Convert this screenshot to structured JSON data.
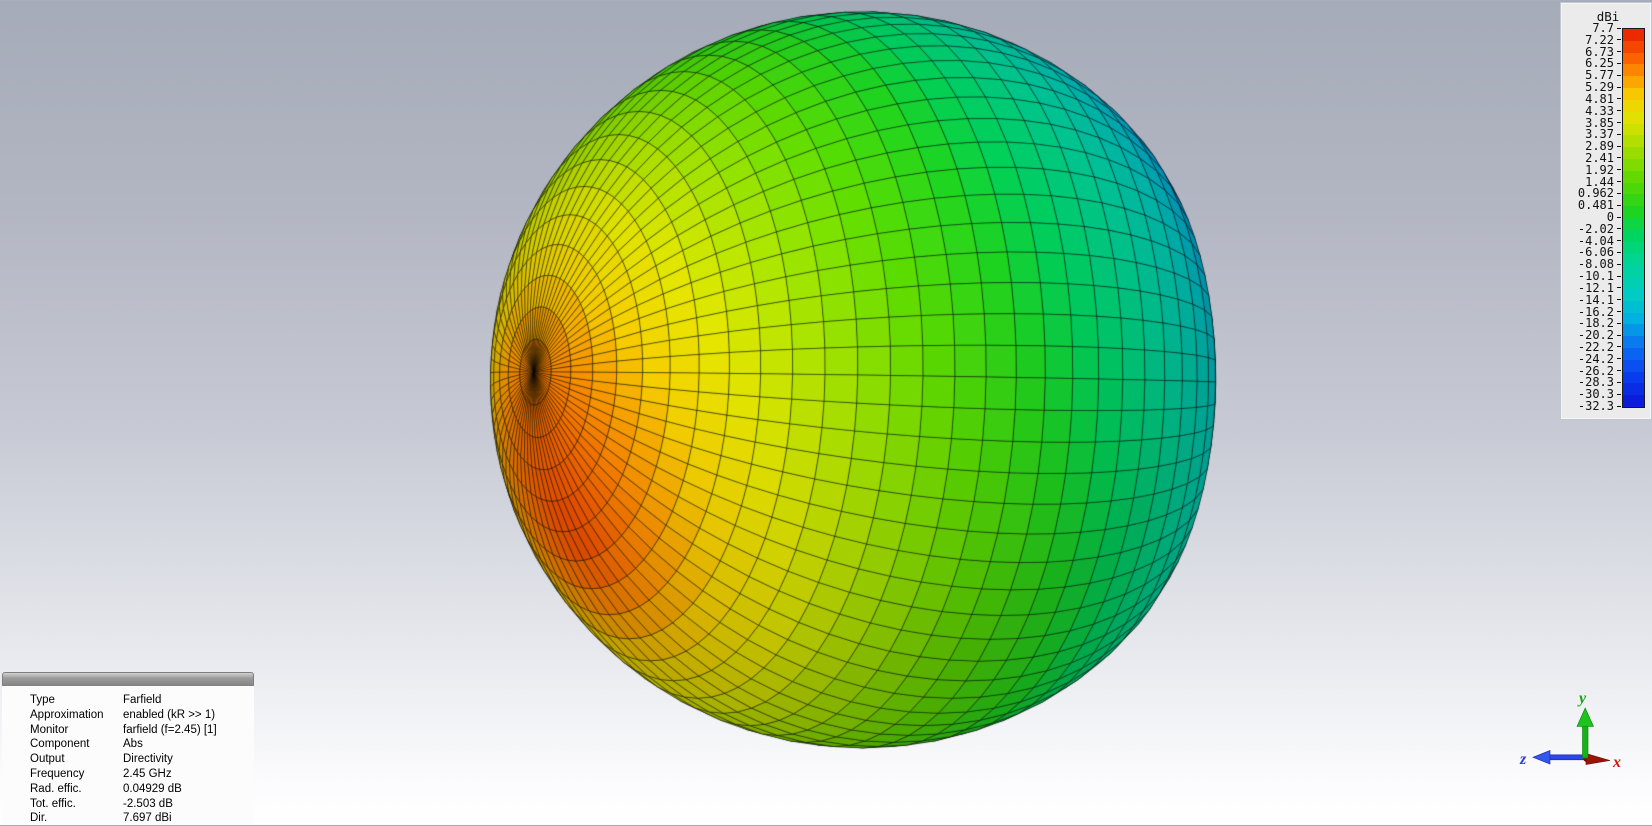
{
  "background": {
    "top": "#a6abb9",
    "bottom": "#ffffff"
  },
  "legend": {
    "title": "dBi",
    "ticks": [
      "7.7",
      "7.22",
      "6.73",
      "6.25",
      "5.77",
      "5.29",
      "4.81",
      "4.33",
      "3.85",
      "3.37",
      "2.89",
      "2.41",
      "1.92",
      "1.44",
      "0.962",
      "0.481",
      "0",
      "-2.02",
      "-4.04",
      "-6.06",
      "-8.08",
      "-10.1",
      "-12.1",
      "-14.1",
      "-16.2",
      "-18.2",
      "-20.2",
      "-22.2",
      "-24.2",
      "-26.2",
      "-28.3",
      "-30.3",
      "-32.3"
    ]
  },
  "colormap": {
    "stops": [
      [
        0.0,
        "#0b16d8"
      ],
      [
        0.08,
        "#0a3cee"
      ],
      [
        0.16,
        "#0b71f2"
      ],
      [
        0.24,
        "#00b6e0"
      ],
      [
        0.3,
        "#00ccc2"
      ],
      [
        0.38,
        "#00d498"
      ],
      [
        0.46,
        "#00d55c"
      ],
      [
        0.52,
        "#1fd41f"
      ],
      [
        0.6,
        "#5cd800"
      ],
      [
        0.68,
        "#a0de00"
      ],
      [
        0.76,
        "#e0e200"
      ],
      [
        0.82,
        "#f6d000"
      ],
      [
        0.88,
        "#ff9000"
      ],
      [
        0.93,
        "#fb5a00"
      ],
      [
        1.0,
        "#e81c00"
      ]
    ]
  },
  "info_panel": {
    "rows": [
      {
        "label": "Type",
        "value": "Farfield"
      },
      {
        "label": "Approximation",
        "value": "enabled (kR >> 1)"
      },
      {
        "label": "Monitor",
        "value": "farfield (f=2.45) [1]"
      },
      {
        "label": "Component",
        "value": "Abs"
      },
      {
        "label": "Output",
        "value": "Directivity"
      },
      {
        "label": "Frequency",
        "value": "2.45 GHz"
      },
      {
        "label": "Rad. effic.",
        "value": "0.04929 dB"
      },
      {
        "label": "Tot. effic.",
        "value": "-2.503 dB"
      },
      {
        "label": "Dir.",
        "value": "7.697 dBi"
      }
    ]
  },
  "axes": {
    "x": {
      "label": "x",
      "color": "#d41408"
    },
    "y": {
      "label": "y",
      "color": "#17a317"
    },
    "z": {
      "label": "z",
      "color": "#2a3cd8"
    }
  },
  "chart_data": {
    "type": "3d-surface",
    "title": "Farfield Directivity Abs (3D radiation pattern)",
    "quantity": "Directivity",
    "component": "Abs",
    "units": "dBi",
    "scale_max_dBi": 7.7,
    "scale_min_dBi": -32.3,
    "legend_ticks_dBi": [
      7.7,
      7.22,
      6.73,
      6.25,
      5.77,
      5.29,
      4.81,
      4.33,
      3.85,
      3.37,
      2.89,
      2.41,
      1.92,
      1.44,
      0.962,
      0.481,
      0,
      -2.02,
      -4.04,
      -6.06,
      -8.08,
      -10.1,
      -12.1,
      -14.1,
      -16.2,
      -18.2,
      -20.2,
      -22.2,
      -24.2,
      -26.2,
      -28.3,
      -30.3,
      -32.3
    ],
    "frequency_GHz": 2.45,
    "directivity_max_dBi": 7.697,
    "rad_efficiency_dB": 0.04929,
    "tot_efficiency_dB": -2.503,
    "render": {
      "center": [
        868,
        378
      ],
      "radius": 394,
      "axis": [
        -0.879,
        -0.016,
        0.476
      ],
      "max_dir": [
        -0.757,
        0.438,
        0.485
      ],
      "base_max": 0.965,
      "funnel_depth": 0.8,
      "funnel_power": 26,
      "r_floor": 0.16,
      "asym": [
        0.952,
        0.052
      ],
      "weight_axis": 0.35,
      "weight_max": 0.66,
      "theta_step_deg": 5,
      "phi_step_deg": 5,
      "y_scale": 0.99,
      "light": [
        -0.3,
        -0.55,
        0.78
      ],
      "mesh_color": "rgba(5,5,5,0.82)",
      "mesh_width": 0.55
    }
  }
}
